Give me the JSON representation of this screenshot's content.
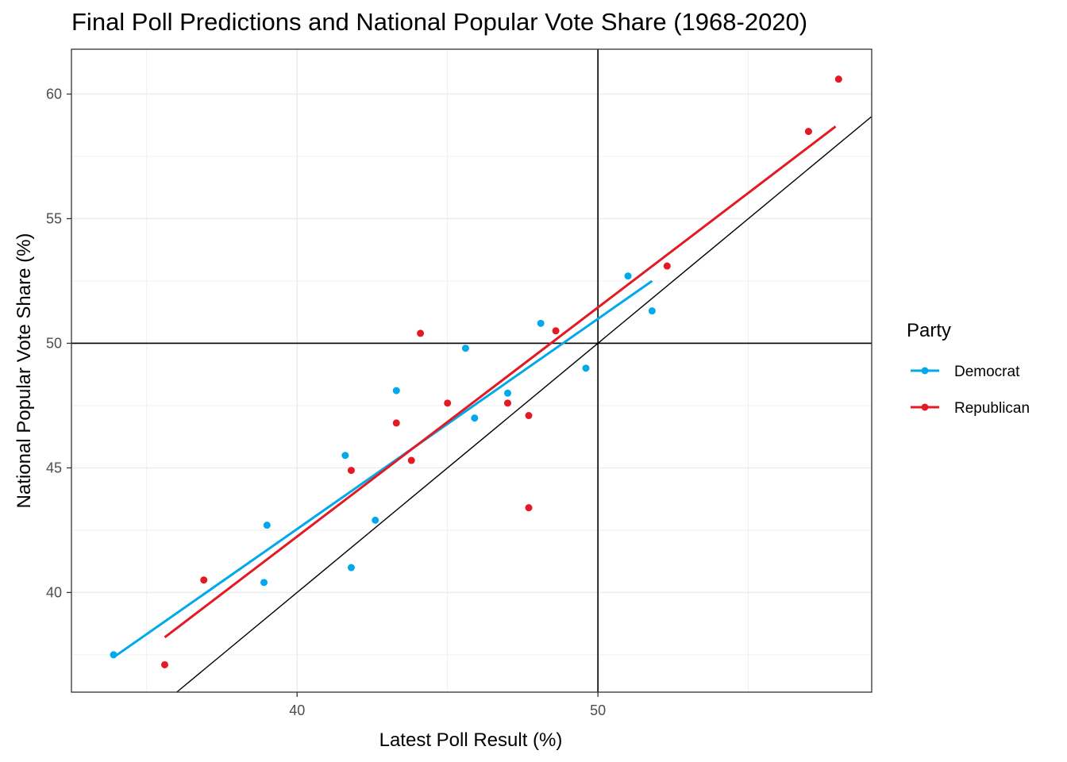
{
  "chart_data": {
    "type": "scatter",
    "title": "Final Poll Predictions and National Popular Vote Share (1968-2020)",
    "xlabel": "Latest Poll Result (%)",
    "ylabel": "National Popular Vote Share (%)",
    "xlim": [
      32.5,
      59.1
    ],
    "ylim": [
      36.0,
      61.8
    ],
    "x_ticks": [
      40,
      50
    ],
    "y_ticks": [
      40,
      45,
      50,
      55,
      60
    ],
    "x_tick_labels": [
      "40",
      "50"
    ],
    "y_tick_labels": [
      "40",
      "45",
      "50",
      "55",
      "60"
    ],
    "grid": true,
    "reference_lines": {
      "hline": 50,
      "vline": 50,
      "diagonal": "y = x"
    },
    "legend": {
      "title": "Party",
      "position": "right"
    },
    "series": [
      {
        "name": "Democrat",
        "color": "#00A9E9",
        "points": [
          [
            33.9,
            37.5
          ],
          [
            38.9,
            40.4
          ],
          [
            39.0,
            42.7
          ],
          [
            41.6,
            45.5
          ],
          [
            41.8,
            41.0
          ],
          [
            42.6,
            42.9
          ],
          [
            43.3,
            48.1
          ],
          [
            45.6,
            49.8
          ],
          [
            45.9,
            47.0
          ],
          [
            47.0,
            48.0
          ],
          [
            48.1,
            50.8
          ],
          [
            49.6,
            49.0
          ],
          [
            51.0,
            52.7
          ],
          [
            51.8,
            51.3
          ]
        ],
        "fit": [
          [
            33.9,
            37.4
          ],
          [
            51.8,
            52.5
          ]
        ]
      },
      {
        "name": "Republican",
        "color": "#E31A23",
        "points": [
          [
            35.6,
            37.1
          ],
          [
            36.9,
            40.5
          ],
          [
            41.8,
            44.9
          ],
          [
            43.3,
            46.8
          ],
          [
            43.8,
            45.3
          ],
          [
            44.1,
            50.4
          ],
          [
            45.0,
            47.6
          ],
          [
            47.0,
            47.6
          ],
          [
            47.7,
            43.4
          ],
          [
            47.7,
            47.1
          ],
          [
            48.6,
            50.5
          ],
          [
            52.3,
            53.1
          ],
          [
            57.0,
            58.5
          ],
          [
            58.0,
            60.6
          ]
        ],
        "fit": [
          [
            35.6,
            38.2
          ],
          [
            57.9,
            58.7
          ]
        ]
      }
    ]
  }
}
